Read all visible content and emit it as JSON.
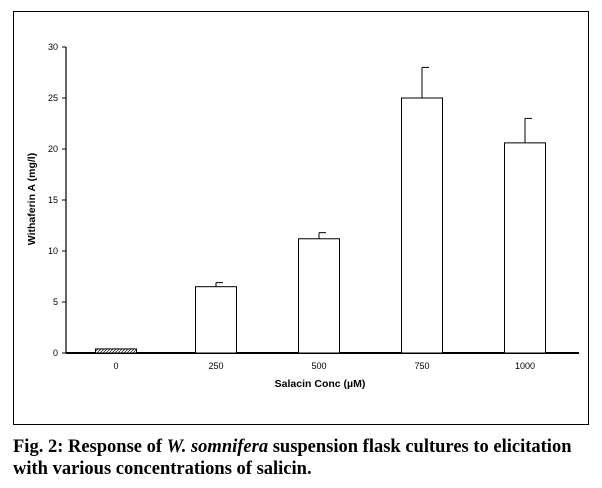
{
  "chart_data": {
    "type": "bar",
    "categories": [
      "0",
      "250",
      "500",
      "750",
      "1000"
    ],
    "values": [
      0.4,
      6.5,
      11.2,
      25.0,
      20.6
    ],
    "error_upper": [
      0.0,
      0.4,
      0.6,
      3.0,
      2.4
    ],
    "xlabel": "Salacin Conc (µM)",
    "ylabel": "Withaferin A (mg/l)",
    "ylim": [
      0,
      30
    ],
    "yticks": [
      "0",
      "5",
      "10",
      "15",
      "20",
      "25",
      "30"
    ],
    "grid": false,
    "legend": "none",
    "colors": {
      "bar_fill": "#ffffff",
      "bar_stroke": "#000000",
      "control_bar_pattern": "hatched"
    }
  },
  "caption": {
    "prefix": "Fig. 2: Response of ",
    "species": "W. somnifera",
    "suffix": " suspension flask cultures to elicitation with various concentrations of salicin."
  }
}
